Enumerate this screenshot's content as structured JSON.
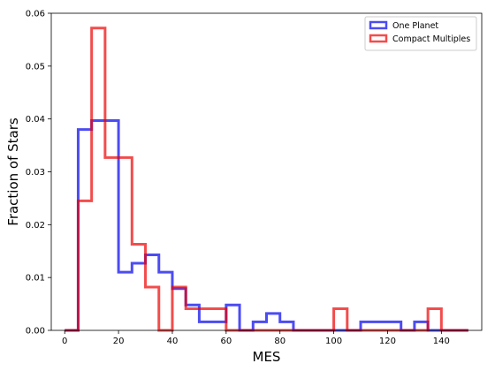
{
  "chart_data": {
    "type": "step-histogram",
    "xlabel": "MES",
    "ylabel": "Fraction of Stars",
    "xlim": [
      -5,
      155
    ],
    "ylim": [
      0,
      0.06
    ],
    "xticks": [
      0,
      20,
      40,
      60,
      80,
      100,
      120,
      140
    ],
    "yticks": [
      0.0,
      0.01,
      0.02,
      0.03,
      0.04,
      0.05,
      0.06
    ],
    "ytick_labels": [
      "0.00",
      "0.01",
      "0.02",
      "0.03",
      "0.04",
      "0.05",
      "0.06"
    ],
    "legend_position": "top-right",
    "bin_edges": [
      0,
      5,
      10,
      15,
      20,
      25,
      30,
      35,
      40,
      45,
      50,
      55,
      60,
      65,
      70,
      75,
      80,
      85,
      90,
      95,
      100,
      105,
      110,
      115,
      120,
      125,
      130,
      135,
      140,
      145,
      150
    ],
    "series": [
      {
        "name": "One Planet",
        "color": "#0000ee",
        "values": [
          0,
          0.038,
          0.0397,
          0.0397,
          0.011,
          0.0127,
          0.0143,
          0.011,
          0.0079,
          0.0048,
          0.0016,
          0.0016,
          0.0048,
          0,
          0.0016,
          0.0032,
          0.0016,
          0,
          0,
          0,
          0,
          0,
          0.0016,
          0.0016,
          0.0016,
          0,
          0.0016,
          0,
          0,
          0
        ]
      },
      {
        "name": "Compact Multiples",
        "color": "#ee0000",
        "values": [
          0,
          0.0245,
          0.0572,
          0.0327,
          0.0327,
          0.0163,
          0.0082,
          0,
          0.0082,
          0.0041,
          0.0041,
          0.0041,
          0,
          0,
          0,
          0,
          0,
          0,
          0,
          0,
          0.0041,
          0,
          0,
          0,
          0,
          0,
          0,
          0.0041,
          0,
          0
        ]
      }
    ]
  }
}
